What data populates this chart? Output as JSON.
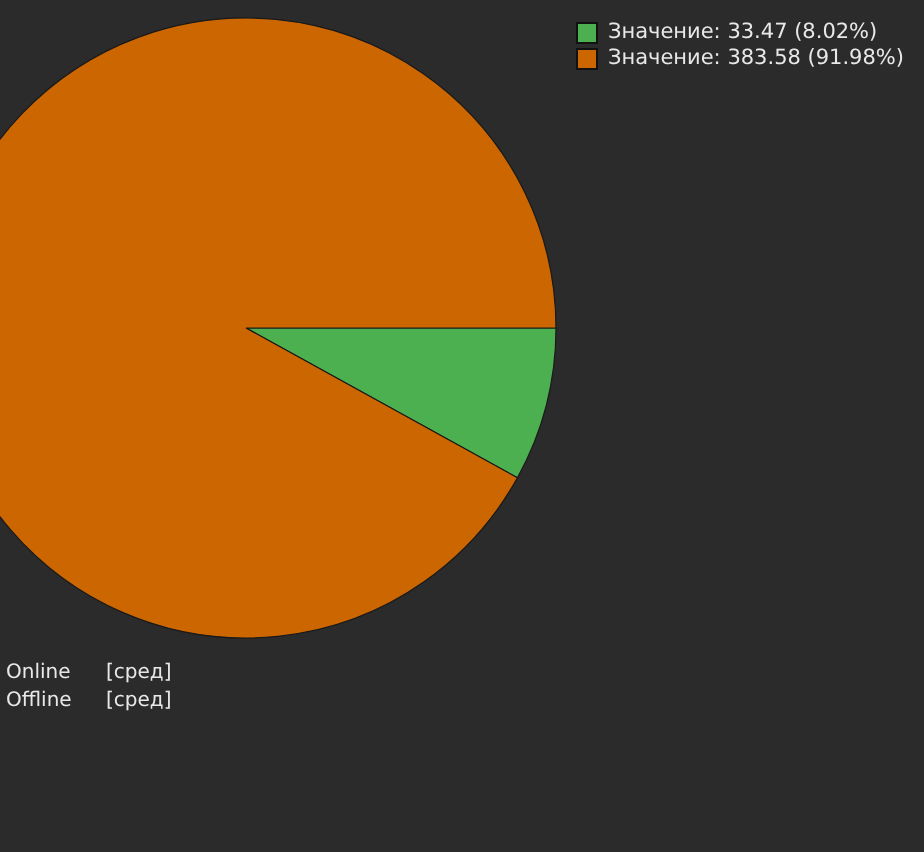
{
  "chart_data": {
    "type": "pie",
    "categories": [
      "Значение: 33.47 (8.02%)",
      "Значение: 383.58 (91.98%)"
    ],
    "values": [
      33.47,
      383.58
    ],
    "colors": [
      "#4cb050",
      "#cc6600"
    ],
    "legend": "top right",
    "annotations": [
      "Online",
      "[сред]",
      "Offline",
      "[сред]"
    ]
  }
}
